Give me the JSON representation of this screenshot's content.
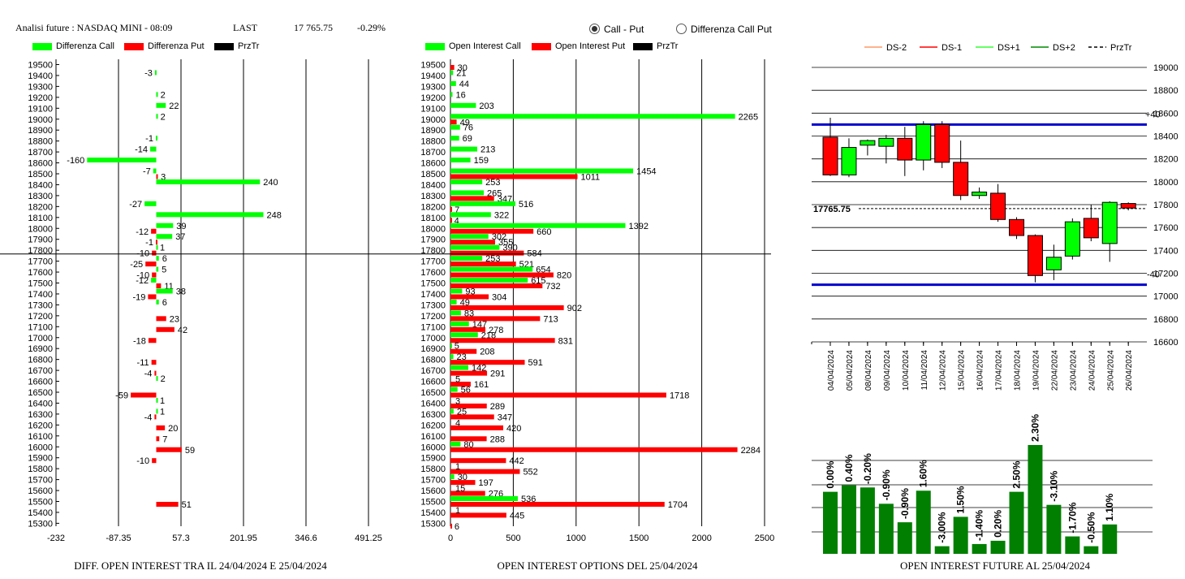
{
  "header": {
    "title": "Analisi future : NASDAQ MINI - 08:09",
    "last_label": "LAST",
    "last_value": "17 765.75",
    "change": "-0.29%"
  },
  "radio_options": [
    {
      "label": "Call - Put",
      "selected": true
    },
    {
      "label": "Differenza Call Put",
      "selected": false
    }
  ],
  "colors": {
    "call": "#00ff00",
    "put": "#ff0000",
    "price": "#000000",
    "blue": "#0000cc",
    "green_bar": "#007f00"
  },
  "captions": {
    "left": "DIFF. OPEN INTEREST TRA IL 24/04/2024 E 25/04/2024",
    "middle": "OPEN INTEREST OPTIONS DEL 25/04/2024",
    "right": "OPEN INTEREST FUTURE AL 25/04/2024"
  },
  "chart_data": [
    {
      "type": "bar",
      "orientation": "horizontal",
      "legend": [
        "Differenza Call",
        "Differenza Put",
        "PrzTr"
      ],
      "strikes": [
        19500,
        19400,
        19300,
        19200,
        19100,
        19000,
        18900,
        18800,
        18700,
        18600,
        18500,
        18400,
        18300,
        18200,
        18100,
        18000,
        17900,
        17800,
        17700,
        17600,
        17500,
        17400,
        17300,
        17200,
        17100,
        17000,
        16900,
        16800,
        16700,
        16600,
        16500,
        16400,
        16300,
        16200,
        16100,
        16000,
        15900,
        15800,
        15700,
        15600,
        15500,
        15400,
        15300
      ],
      "series": [
        {
          "name": "Differenza Call",
          "values": {
            "19400": -3,
            "19200": 2,
            "19100": 22,
            "19000": 2,
            "18800": -1,
            "18700": -14,
            "18600": -160,
            "18500": -7,
            "18400": 240,
            "18200": -27,
            "18100": 248,
            "18000": 39,
            "17900": 37,
            "17800": 1,
            "17700": 6,
            "17600": 5,
            "17500": -12,
            "17400": 38,
            "17300": 6,
            "16600": 2,
            "16400": 1,
            "16300": 1
          }
        },
        {
          "name": "Differenza Put",
          "values": {
            "18500": 3,
            "18000": -12,
            "17900": -1,
            "17800": -10,
            "17700": -25,
            "17600": -10,
            "17500": 11,
            "17400": -19,
            "17200": 23,
            "17100": 42,
            "17000": -18,
            "16800": -11,
            "16700": -4,
            "16500": -59,
            "16300": -4,
            "16200": 20,
            "16100": 7,
            "16000": 59,
            "15900": -10,
            "15500": 51
          }
        }
      ],
      "price_level": 17765.75,
      "xticks": [
        "-232",
        "-87.35",
        "57.3",
        "201.95",
        "346.6",
        "491.25"
      ],
      "xlim": [
        -232,
        491.25
      ]
    },
    {
      "type": "bar",
      "orientation": "horizontal",
      "legend": [
        "Open Interest Call",
        "Open Interest Put",
        "PrzTr"
      ],
      "strikes": [
        19500,
        19400,
        19300,
        19200,
        19100,
        19000,
        18900,
        18800,
        18700,
        18600,
        18500,
        18400,
        18300,
        18200,
        18100,
        18000,
        17900,
        17800,
        17700,
        17600,
        17500,
        17400,
        17300,
        17200,
        17100,
        17000,
        16900,
        16800,
        16700,
        16600,
        16500,
        16400,
        16300,
        16200,
        16100,
        16000,
        15900,
        15800,
        15700,
        15600,
        15500,
        15400,
        15300
      ],
      "series": [
        {
          "name": "Open Interest Call",
          "values": {
            "19400": 21,
            "19300": 44,
            "19200": 16,
            "19100": 203,
            "19000": 2265,
            "18900": 76,
            "18800": 69,
            "18700": 213,
            "18600": 159,
            "18500": 1454,
            "18400": 253,
            "18300": 265,
            "18200": 516,
            "18100": 322,
            "18000": 1392,
            "17900": 302,
            "17800": 390,
            "17700": 253,
            "17600": 654,
            "17500": 615,
            "17400": 93,
            "17300": 49,
            "17200": 83,
            "17100": 147,
            "17000": 218,
            "16900": 5,
            "16800": 23,
            "16700": 142,
            "16500": 56,
            "16300": 25,
            "16000": 80,
            "15700": 30,
            "15500": 536
          }
        },
        {
          "name": "Open Interest Put",
          "values": {
            "19500": 30,
            "19000": 49,
            "18500": 1011,
            "18300": 347,
            "18200": 7,
            "18100": 4,
            "18000": 660,
            "17900": 355,
            "17800": 584,
            "17700": 521,
            "17600": 820,
            "17500": 732,
            "17400": 304,
            "17300": 902,
            "17200": 713,
            "17100": 278,
            "17000": 831,
            "16900": 208,
            "16800": 591,
            "16700": 291,
            "16600": 161,
            "16500": 1718,
            "16400": 289,
            "16300": 347,
            "16200": 420,
            "16100": 288,
            "16000": 2284,
            "15900": 442,
            "15800": 552,
            "15700": 197,
            "15600": 276,
            "15500": 1704,
            "15400": 445,
            "15300": 6
          }
        }
      ],
      "value_labels_extra": {
        "16600": "5",
        "16400": "3",
        "16200": "4",
        "15800": "1",
        "15600": "15",
        "15400": "1"
      },
      "xticks": [
        "0",
        "500",
        "1000",
        "1500",
        "2000",
        "2500"
      ],
      "xlim": [
        0,
        2500
      ]
    },
    {
      "type": "candlestick",
      "legend": [
        "DS-2",
        "DS-1",
        "DS+1",
        "DS+2",
        "PrzTr"
      ],
      "dates": [
        "04/04/2024",
        "05/04/2024",
        "08/04/2024",
        "09/04/2024",
        "10/04/2024",
        "11/04/2024",
        "12/04/2024",
        "15/04/2024",
        "16/04/2024",
        "17/04/2024",
        "18/04/2024",
        "19/04/2024",
        "22/04/2024",
        "23/04/2024",
        "24/04/2024",
        "25/04/2024",
        "26/04/2024"
      ],
      "candles": [
        {
          "o": 18390,
          "c": 18060,
          "h": 18560,
          "l": 18050
        },
        {
          "o": 18060,
          "c": 18300,
          "h": 18380,
          "l": 18040
        },
        {
          "o": 18320,
          "c": 18360,
          "h": 18370,
          "l": 18230
        },
        {
          "o": 18310,
          "c": 18380,
          "h": 18410,
          "l": 18160
        },
        {
          "o": 18380,
          "c": 18190,
          "h": 18480,
          "l": 18050
        },
        {
          "o": 18190,
          "c": 18500,
          "h": 18530,
          "l": 18100
        },
        {
          "o": 18500,
          "c": 18170,
          "h": 18530,
          "l": 18120
        },
        {
          "o": 18170,
          "c": 17880,
          "h": 18360,
          "l": 17840
        },
        {
          "o": 17880,
          "c": 17910,
          "h": 17950,
          "l": 17850
        },
        {
          "o": 17900,
          "c": 17670,
          "h": 17980,
          "l": 17650
        },
        {
          "o": 17670,
          "c": 17530,
          "h": 17690,
          "l": 17500
        },
        {
          "o": 17530,
          "c": 17180,
          "h": 17540,
          "l": 17120
        },
        {
          "o": 17230,
          "c": 17340,
          "h": 17450,
          "l": 17140
        },
        {
          "o": 17350,
          "c": 17650,
          "h": 17680,
          "l": 17320
        },
        {
          "o": 17680,
          "c": 17510,
          "h": 17800,
          "l": 17480
        },
        {
          "o": 17460,
          "c": 17820,
          "h": 17830,
          "l": 17300
        },
        {
          "o": 17810,
          "c": 17770,
          "h": 17820,
          "l": 17750
        }
      ],
      "ylim": [
        16600,
        19000
      ],
      "yticks": [
        "19000",
        "18800",
        "18600",
        "18400",
        "18200",
        "18000",
        "17800",
        "17600",
        "17400",
        "17200",
        "17000",
        "16800",
        "16600"
      ],
      "upper_band": 18500,
      "upper_band_label": "+40",
      "lower_band": 17100,
      "lower_band_label": "-40",
      "price_level": 17765.75,
      "price_label": "17765.75"
    },
    {
      "type": "bar",
      "values": [
        0.0,
        0.4,
        -0.2,
        -0.9,
        -0.9,
        1.6,
        -3.0,
        1.5,
        -1.4,
        0.2,
        2.5,
        2.3,
        -3.1,
        -1.7,
        -0.5,
        1.1
      ],
      "labels": [
        "0.00%",
        "0.40%",
        "-0.20%",
        "-0.90%",
        "-0.90%",
        "1.60%",
        "-3.00%",
        "1.50%",
        "-1.40%",
        "0.20%",
        "2.50%",
        "2.30%",
        "-3.10%",
        "-1.70%",
        "-0.50%",
        "1.10%"
      ],
      "open_interest_relative": [
        0.57,
        0.63,
        0.61,
        0.46,
        0.29,
        0.58,
        0.07,
        0.34,
        0.09,
        0.12,
        0.57,
        1.0,
        0.45,
        0.16,
        0.07,
        0.27
      ]
    }
  ]
}
